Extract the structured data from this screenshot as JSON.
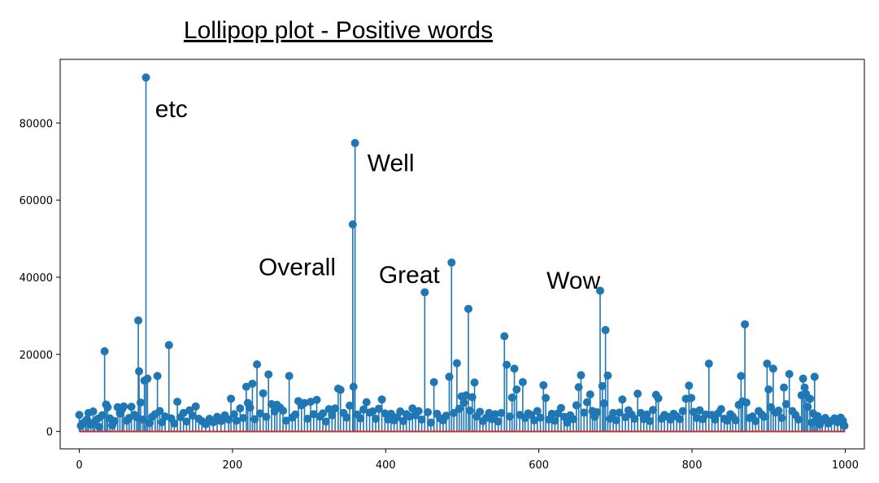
{
  "chart_data": {
    "type": "lollipop",
    "title": "Lollipop plot - Positive words",
    "xlabel": "",
    "ylabel": "",
    "xlim": [
      -25,
      1025
    ],
    "ylim": [
      -4500,
      96500
    ],
    "xticks": [
      0,
      200,
      400,
      600,
      800,
      1000
    ],
    "yticks": [
      0,
      20000,
      40000,
      60000,
      80000
    ],
    "xtick_labels": [
      "0",
      "200",
      "400",
      "600",
      "800",
      "1000"
    ],
    "ytick_labels": [
      "0",
      "20000",
      "40000",
      "60000",
      "80000"
    ],
    "grid": false,
    "baseline": 0,
    "colors": {
      "stem": "#1f77b4",
      "marker": "#1f77b4",
      "baseline": "#d62728",
      "axes": "#000000"
    },
    "annotations": [
      {
        "text": "etc",
        "x": 99,
        "y": 81500
      },
      {
        "text": "Well",
        "x": 376,
        "y": 67500
      },
      {
        "text": "Overall",
        "x": 234,
        "y": 40500
      },
      {
        "text": "Great",
        "x": 391,
        "y": 38500
      },
      {
        "text": "Wow",
        "x": 610,
        "y": 37000
      }
    ],
    "points": [
      [
        0,
        4300
      ],
      [
        2,
        1500
      ],
      [
        5,
        2200
      ],
      [
        8,
        2600
      ],
      [
        10,
        3100
      ],
      [
        12,
        4800
      ],
      [
        15,
        1800
      ],
      [
        18,
        5200
      ],
      [
        20,
        2500
      ],
      [
        24,
        3300
      ],
      [
        26,
        1200
      ],
      [
        30,
        4200
      ],
      [
        33,
        20800
      ],
      [
        35,
        7000
      ],
      [
        37,
        6300
      ],
      [
        40,
        3400
      ],
      [
        43,
        1600
      ],
      [
        46,
        2700
      ],
      [
        50,
        6300
      ],
      [
        53,
        4700
      ],
      [
        56,
        5800
      ],
      [
        58,
        6500
      ],
      [
        62,
        2800
      ],
      [
        65,
        3500
      ],
      [
        68,
        6400
      ],
      [
        72,
        4300
      ],
      [
        75,
        3700
      ],
      [
        77,
        28800
      ],
      [
        78,
        15600
      ],
      [
        80,
        7500
      ],
      [
        83,
        3100
      ],
      [
        85,
        13200
      ],
      [
        87,
        91800
      ],
      [
        89,
        13700
      ],
      [
        92,
        2200
      ],
      [
        95,
        3800
      ],
      [
        99,
        4500
      ],
      [
        102,
        14400
      ],
      [
        105,
        5300
      ],
      [
        108,
        2400
      ],
      [
        112,
        3900
      ],
      [
        117,
        22400
      ],
      [
        120,
        3400
      ],
      [
        124,
        2100
      ],
      [
        128,
        7700
      ],
      [
        132,
        3700
      ],
      [
        136,
        4800
      ],
      [
        140,
        2600
      ],
      [
        144,
        5500
      ],
      [
        148,
        4100
      ],
      [
        152,
        6500
      ],
      [
        156,
        3300
      ],
      [
        160,
        2700
      ],
      [
        165,
        1900
      ],
      [
        170,
        3300
      ],
      [
        175,
        2400
      ],
      [
        180,
        3800
      ],
      [
        185,
        2700
      ],
      [
        190,
        4200
      ],
      [
        195,
        3100
      ],
      [
        198,
        8500
      ],
      [
        202,
        4500
      ],
      [
        205,
        2800
      ],
      [
        210,
        6000
      ],
      [
        214,
        3500
      ],
      [
        218,
        11600
      ],
      [
        220,
        7400
      ],
      [
        223,
        6200
      ],
      [
        226,
        12400
      ],
      [
        229,
        3200
      ],
      [
        232,
        17400
      ],
      [
        236,
        4700
      ],
      [
        240,
        9900
      ],
      [
        244,
        3800
      ],
      [
        247,
        14800
      ],
      [
        251,
        7100
      ],
      [
        255,
        5200
      ],
      [
        258,
        6900
      ],
      [
        262,
        6200
      ],
      [
        266,
        5400
      ],
      [
        270,
        2800
      ],
      [
        274,
        14400
      ],
      [
        278,
        3600
      ],
      [
        282,
        4400
      ],
      [
        286,
        7900
      ],
      [
        290,
        6800
      ],
      [
        294,
        7400
      ],
      [
        298,
        3300
      ],
      [
        302,
        7700
      ],
      [
        306,
        4500
      ],
      [
        310,
        8200
      ],
      [
        314,
        3900
      ],
      [
        318,
        4700
      ],
      [
        322,
        2600
      ],
      [
        326,
        5800
      ],
      [
        330,
        4200
      ],
      [
        334,
        6000
      ],
      [
        338,
        11100
      ],
      [
        341,
        10800
      ],
      [
        345,
        4800
      ],
      [
        349,
        3600
      ],
      [
        353,
        6700
      ],
      [
        357,
        53700
      ],
      [
        358,
        11600
      ],
      [
        360,
        74800
      ],
      [
        363,
        4400
      ],
      [
        367,
        3400
      ],
      [
        371,
        5700
      ],
      [
        375,
        7600
      ],
      [
        379,
        4900
      ],
      [
        383,
        5200
      ],
      [
        387,
        3300
      ],
      [
        391,
        5900
      ],
      [
        395,
        8300
      ],
      [
        399,
        4700
      ],
      [
        403,
        3100
      ],
      [
        407,
        4600
      ],
      [
        411,
        2900
      ],
      [
        415,
        3700
      ],
      [
        419,
        5200
      ],
      [
        423,
        2700
      ],
      [
        427,
        4500
      ],
      [
        431,
        3900
      ],
      [
        435,
        6000
      ],
      [
        439,
        4200
      ],
      [
        443,
        5300
      ],
      [
        447,
        3100
      ],
      [
        451,
        36100
      ],
      [
        455,
        5000
      ],
      [
        459,
        2300
      ],
      [
        463,
        12800
      ],
      [
        467,
        4600
      ],
      [
        471,
        3400
      ],
      [
        475,
        2900
      ],
      [
        479,
        4100
      ],
      [
        483,
        14200
      ],
      [
        486,
        43800
      ],
      [
        489,
        4800
      ],
      [
        493,
        17700
      ],
      [
        496,
        5900
      ],
      [
        499,
        9100
      ],
      [
        502,
        7500
      ],
      [
        505,
        9400
      ],
      [
        508,
        31800
      ],
      [
        510,
        5400
      ],
      [
        513,
        8900
      ],
      [
        516,
        12700
      ],
      [
        519,
        3900
      ],
      [
        523,
        5100
      ],
      [
        527,
        2700
      ],
      [
        531,
        3500
      ],
      [
        535,
        4800
      ],
      [
        539,
        3200
      ],
      [
        543,
        4500
      ],
      [
        547,
        2600
      ],
      [
        551,
        4800
      ],
      [
        555,
        24700
      ],
      [
        558,
        17300
      ],
      [
        562,
        3900
      ],
      [
        565,
        8800
      ],
      [
        568,
        16300
      ],
      [
        571,
        10900
      ],
      [
        575,
        4300
      ],
      [
        579,
        12800
      ],
      [
        582,
        3500
      ],
      [
        586,
        4700
      ],
      [
        590,
        4300
      ],
      [
        594,
        2900
      ],
      [
        598,
        5300
      ],
      [
        602,
        3600
      ],
      [
        606,
        12000
      ],
      [
        609,
        8700
      ],
      [
        613,
        3100
      ],
      [
        617,
        4600
      ],
      [
        621,
        2800
      ],
      [
        625,
        4700
      ],
      [
        629,
        6100
      ],
      [
        633,
        3800
      ],
      [
        637,
        2300
      ],
      [
        641,
        4200
      ],
      [
        645,
        3200
      ],
      [
        649,
        6800
      ],
      [
        652,
        11500
      ],
      [
        655,
        14600
      ],
      [
        659,
        4900
      ],
      [
        663,
        7600
      ],
      [
        667,
        9600
      ],
      [
        670,
        5300
      ],
      [
        673,
        3800
      ],
      [
        676,
        5000
      ],
      [
        680,
        36500
      ],
      [
        683,
        11800
      ],
      [
        685,
        7300
      ],
      [
        687,
        26300
      ],
      [
        690,
        14500
      ],
      [
        693,
        3300
      ],
      [
        697,
        4800
      ],
      [
        701,
        2900
      ],
      [
        705,
        4900
      ],
      [
        709,
        8300
      ],
      [
        713,
        3700
      ],
      [
        717,
        5500
      ],
      [
        721,
        4400
      ],
      [
        725,
        3300
      ],
      [
        729,
        9800
      ],
      [
        733,
        4800
      ],
      [
        737,
        3200
      ],
      [
        741,
        4400
      ],
      [
        745,
        2700
      ],
      [
        749,
        5600
      ],
      [
        753,
        9500
      ],
      [
        756,
        8600
      ],
      [
        760,
        3300
      ],
      [
        764,
        4300
      ],
      [
        768,
        3800
      ],
      [
        772,
        3100
      ],
      [
        776,
        4600
      ],
      [
        780,
        3900
      ],
      [
        784,
        3200
      ],
      [
        788,
        5300
      ],
      [
        792,
        8500
      ],
      [
        796,
        11900
      ],
      [
        799,
        8700
      ],
      [
        802,
        5100
      ],
      [
        806,
        3500
      ],
      [
        810,
        5500
      ],
      [
        814,
        3200
      ],
      [
        818,
        4400
      ],
      [
        822,
        17600
      ],
      [
        826,
        4300
      ],
      [
        830,
        3100
      ],
      [
        834,
        4700
      ],
      [
        838,
        5800
      ],
      [
        842,
        3300
      ],
      [
        846,
        2800
      ],
      [
        850,
        4500
      ],
      [
        853,
        3900
      ],
      [
        857,
        2900
      ],
      [
        861,
        6900
      ],
      [
        864,
        14400
      ],
      [
        866,
        7800
      ],
      [
        869,
        27800
      ],
      [
        871,
        7500
      ],
      [
        875,
        3500
      ],
      [
        879,
        3900
      ],
      [
        883,
        2700
      ],
      [
        887,
        5300
      ],
      [
        891,
        4400
      ],
      [
        894,
        3800
      ],
      [
        898,
        17600
      ],
      [
        900,
        10900
      ],
      [
        903,
        6300
      ],
      [
        906,
        16300
      ],
      [
        909,
        4900
      ],
      [
        913,
        5400
      ],
      [
        917,
        3500
      ],
      [
        920,
        11400
      ],
      [
        923,
        7100
      ],
      [
        927,
        14900
      ],
      [
        931,
        5300
      ],
      [
        935,
        4300
      ],
      [
        939,
        3100
      ],
      [
        943,
        9400
      ],
      [
        945,
        13700
      ],
      [
        947,
        11400
      ],
      [
        949,
        9700
      ],
      [
        951,
        6400
      ],
      [
        954,
        8500
      ],
      [
        956,
        2300
      ],
      [
        958,
        4700
      ],
      [
        960,
        14200
      ],
      [
        962,
        2600
      ],
      [
        964,
        4000
      ],
      [
        967,
        1800
      ],
      [
        970,
        2900
      ],
      [
        974,
        3500
      ],
      [
        978,
        2100
      ],
      [
        982,
        2700
      ],
      [
        986,
        3400
      ],
      [
        990,
        2400
      ],
      [
        994,
        3600
      ],
      [
        997,
        2800
      ],
      [
        999,
        1500
      ]
    ]
  }
}
